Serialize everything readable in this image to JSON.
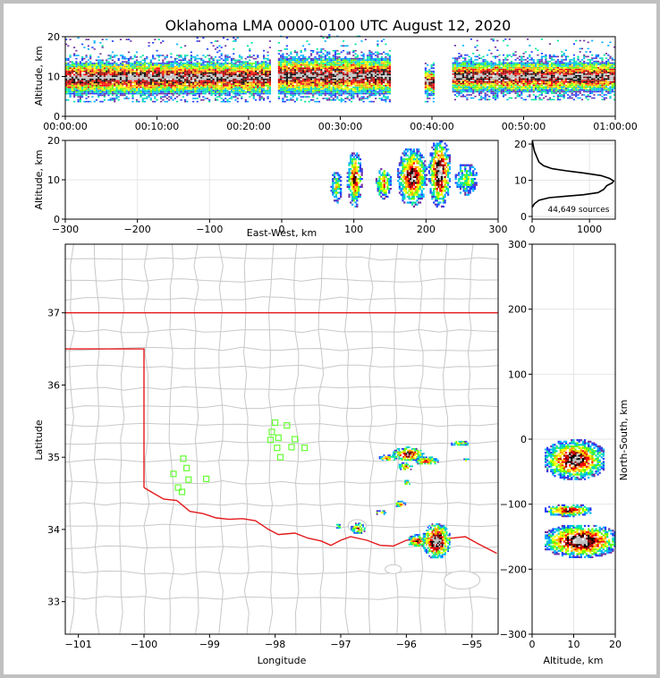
{
  "title": "Oklahoma LMA 0000-0100 UTC August 12, 2020",
  "colors": {
    "state_border": "#e31a1c",
    "county_border": "#c8c8c8",
    "station_marker": "#66ff33",
    "density_scale": [
      "#7030a0",
      "#1f3cff",
      "#00b0ff",
      "#00e5a0",
      "#66ff00",
      "#ffff00",
      "#ffa500",
      "#ff0000",
      "#8b0000",
      "#000000",
      "#bfbfbf"
    ]
  },
  "chart_data": [
    {
      "id": "time-height",
      "type": "heatmap",
      "xlabel": "",
      "ylabel": "Altitude, km",
      "xlim": [
        "00:00:00",
        "01:00:00"
      ],
      "ylim": [
        0,
        20
      ],
      "xticks": [
        "00:00:00",
        "00:10:00",
        "00:20:00",
        "00:30:00",
        "00:40:00",
        "00:50:00",
        "01:00:00"
      ],
      "yticks": [
        0,
        10,
        20
      ],
      "activity_segments": [
        {
          "start_min": 0.0,
          "end_min": 22.4,
          "base_km": 5.5,
          "top_km": 13.5
        },
        {
          "start_min": 23.2,
          "end_min": 35.5,
          "base_km": 5.5,
          "top_km": 14.5
        },
        {
          "start_min": 39.2,
          "end_min": 40.3,
          "base_km": 5.5,
          "top_km": 11.5
        },
        {
          "start_min": 42.2,
          "end_min": 60.0,
          "base_km": 6.0,
          "top_km": 13.5
        }
      ]
    },
    {
      "id": "ew-altitude",
      "type": "heatmap",
      "xlabel": "East-West, km",
      "ylabel": "Altitude, km",
      "xlim": [
        -300,
        300
      ],
      "ylim": [
        0,
        20
      ],
      "xticks": [
        -300,
        -200,
        -100,
        0,
        100,
        200,
        300
      ],
      "yticks": [
        0,
        10,
        20
      ],
      "cells": [
        {
          "x": 75,
          "width": 15,
          "z_base": 4,
          "z_top": 12,
          "intensity": 0.4
        },
        {
          "x": 100,
          "width": 20,
          "z_base": 3,
          "z_top": 17,
          "intensity": 0.75
        },
        {
          "x": 140,
          "width": 20,
          "z_base": 5,
          "z_top": 13,
          "intensity": 0.6
        },
        {
          "x": 180,
          "width": 40,
          "z_base": 3,
          "z_top": 18,
          "intensity": 0.9
        },
        {
          "x": 218,
          "width": 30,
          "z_base": 3,
          "z_top": 20,
          "intensity": 1.0
        },
        {
          "x": 255,
          "width": 30,
          "z_base": 6,
          "z_top": 14,
          "intensity": 0.35
        }
      ]
    },
    {
      "id": "altitude-histogram",
      "type": "line",
      "xlabel": "",
      "ylabel": "",
      "xlim": [
        0,
        1450
      ],
      "ylim": [
        0,
        21
      ],
      "xticks": [
        0,
        1000
      ],
      "yticks": [
        0,
        10,
        20
      ],
      "annotation": "44,649 sources",
      "points": [
        [
          0,
          2.5
        ],
        [
          40,
          3.5
        ],
        [
          120,
          4.5
        ],
        [
          300,
          5.2
        ],
        [
          600,
          5.6
        ],
        [
          900,
          6.0
        ],
        [
          1150,
          6.6
        ],
        [
          1250,
          7.5
        ],
        [
          1300,
          8.5
        ],
        [
          1400,
          9.3
        ],
        [
          1420,
          9.8
        ],
        [
          1350,
          10.5
        ],
        [
          1200,
          11.3
        ],
        [
          900,
          12.0
        ],
        [
          600,
          12.6
        ],
        [
          350,
          13.2
        ],
        [
          200,
          14.0
        ],
        [
          120,
          15.0
        ],
        [
          80,
          16.5
        ],
        [
          40,
          18.0
        ],
        [
          20,
          19.5
        ],
        [
          5,
          21.0
        ]
      ]
    },
    {
      "id": "plan-view",
      "type": "scatter",
      "xlabel": "Longitude",
      "ylabel": "Latitude",
      "xlim": [
        -101.2,
        -94.6
      ],
      "ylim": [
        32.55,
        37.95
      ],
      "xticks": [
        -101,
        -100,
        -99,
        -98,
        -97,
        -96,
        -95
      ],
      "yticks": [
        33,
        34,
        35,
        36,
        37
      ],
      "stations": [
        [
          -98.0,
          35.48
        ],
        [
          -97.82,
          35.44
        ],
        [
          -98.05,
          35.35
        ],
        [
          -98.07,
          35.24
        ],
        [
          -97.95,
          35.27
        ],
        [
          -97.7,
          35.25
        ],
        [
          -97.75,
          35.14
        ],
        [
          -97.55,
          35.13
        ],
        [
          -97.97,
          35.13
        ],
        [
          -97.92,
          35.0
        ],
        [
          -99.4,
          34.98
        ],
        [
          -99.35,
          34.85
        ],
        [
          -99.55,
          34.77
        ],
        [
          -99.32,
          34.69
        ],
        [
          -99.05,
          34.7
        ],
        [
          -99.48,
          34.58
        ],
        [
          -99.42,
          34.52
        ]
      ],
      "storms": [
        {
          "lon": -96.3,
          "lat": 35.0,
          "rx": 0.14,
          "ry": 0.05,
          "intensity": 0.55
        },
        {
          "lon": -95.98,
          "lat": 35.05,
          "rx": 0.25,
          "ry": 0.1,
          "intensity": 0.8
        },
        {
          "lon": -95.7,
          "lat": 34.96,
          "rx": 0.18,
          "ry": 0.06,
          "intensity": 0.65
        },
        {
          "lon": -96.02,
          "lat": 34.88,
          "rx": 0.12,
          "ry": 0.06,
          "intensity": 0.6
        },
        {
          "lon": -96.0,
          "lat": 34.66,
          "rx": 0.05,
          "ry": 0.04,
          "intensity": 0.4
        },
        {
          "lon": -95.2,
          "lat": 35.2,
          "rx": 0.14,
          "ry": 0.04,
          "intensity": 0.4
        },
        {
          "lon": -95.1,
          "lat": 34.97,
          "rx": 0.05,
          "ry": 0.03,
          "intensity": 0.3
        },
        {
          "lon": -96.1,
          "lat": 34.36,
          "rx": 0.08,
          "ry": 0.05,
          "intensity": 0.5
        },
        {
          "lon": -96.4,
          "lat": 34.24,
          "rx": 0.08,
          "ry": 0.04,
          "intensity": 0.45
        },
        {
          "lon": -96.75,
          "lat": 34.02,
          "rx": 0.12,
          "ry": 0.08,
          "intensity": 0.55
        },
        {
          "lon": -97.05,
          "lat": 34.05,
          "rx": 0.04,
          "ry": 0.04,
          "intensity": 0.3
        },
        {
          "lon": -95.85,
          "lat": 33.85,
          "rx": 0.14,
          "ry": 0.09,
          "intensity": 0.7
        },
        {
          "lon": -95.55,
          "lat": 33.85,
          "rx": 0.22,
          "ry": 0.25,
          "intensity": 1.0
        }
      ]
    },
    {
      "id": "altitude-ns",
      "type": "heatmap",
      "xlabel": "Altitude, km",
      "ylabel": "North-South, km",
      "xlim": [
        0,
        20
      ],
      "ylim": [
        -300,
        300
      ],
      "xticks": [
        0,
        10,
        20
      ],
      "yticks": [
        -300,
        -200,
        -100,
        0,
        100,
        200,
        300
      ],
      "cells": [
        {
          "y": -30,
          "height": 60,
          "z_base": 3,
          "z_top": 17,
          "intensity": 0.9
        },
        {
          "y": -108,
          "height": 18,
          "z_base": 3,
          "z_top": 14,
          "intensity": 0.75
        },
        {
          "y": -155,
          "height": 50,
          "z_base": 3,
          "z_top": 20,
          "intensity": 1.0
        }
      ]
    }
  ]
}
